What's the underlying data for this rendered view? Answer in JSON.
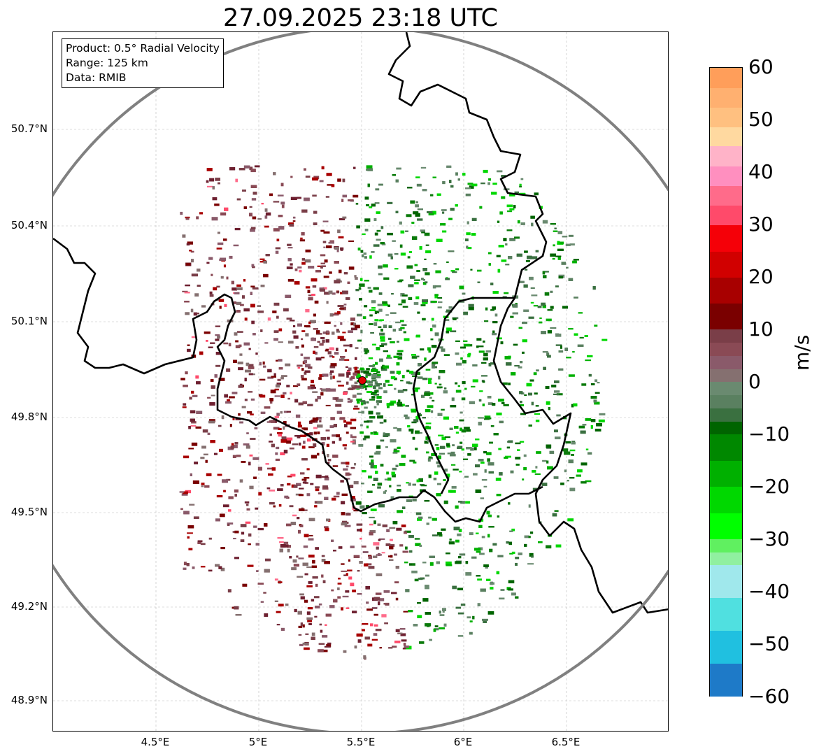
{
  "title": "27.09.2025 23:18 UTC",
  "info": {
    "product": "Product: 0.5° Radial Velocity",
    "range": "Range: 125 km",
    "data": "Data: RMIB"
  },
  "lat_ticks": [
    "50.7°N",
    "50.4°N",
    "50.1°N",
    "49.8°N",
    "49.5°N",
    "49.2°N",
    "48.9°N"
  ],
  "lon_ticks": [
    "4.5°E",
    "5°E",
    "5.5°E",
    "6°E",
    "6.5°E"
  ],
  "colorbar": {
    "unit": "m/s",
    "ticks": [
      "60",
      "50",
      "40",
      "30",
      "20",
      "10",
      "0",
      "−10",
      "−20",
      "−30",
      "−40",
      "−50",
      "−60"
    ],
    "range": [
      -60,
      60
    ],
    "stops": [
      {
        "from": 45,
        "to": 60,
        "colors": [
          "#ffd9a0",
          "#ffc080",
          "#ffb070",
          "#ff9e5a"
        ]
      },
      {
        "from": 30,
        "to": 45,
        "colors": [
          "#ff4a6a",
          "#ff6b8a",
          "#ff8fbf",
          "#ffb3c8"
        ]
      },
      {
        "from": 10,
        "to": 30,
        "colors": [
          "#7a0000",
          "#a80000",
          "#d10000",
          "#f50008"
        ]
      },
      {
        "from": 0,
        "to": 10,
        "colors": [
          "#857070",
          "#8a5a6a",
          "#8a4a55",
          "#7a3e48"
        ]
      },
      {
        "from": -10,
        "to": 0,
        "colors": [
          "#006400",
          "#3a7040",
          "#5a8060",
          "#6a8a70"
        ]
      },
      {
        "from": -30,
        "to": -10,
        "colors": [
          "#00ff00",
          "#00d800",
          "#00b000",
          "#008800"
        ]
      },
      {
        "from": -35,
        "to": -30,
        "colors": [
          "#90f0a0",
          "#60f060"
        ]
      },
      {
        "from": -60,
        "to": -35,
        "colors": [
          "#1e7ac8",
          "#20c0e0",
          "#50e0e0",
          "#a0e8ec"
        ]
      }
    ]
  },
  "map": {
    "center": {
      "lat": 49.914,
      "lon": 5.506
    },
    "lat_range": [
      48.8,
      51.0
    ],
    "lon_range": [
      4.0,
      7.0
    ],
    "range_ring_color": "#808080",
    "border_color": "#000000",
    "radar_marker_color": "#e00000"
  }
}
